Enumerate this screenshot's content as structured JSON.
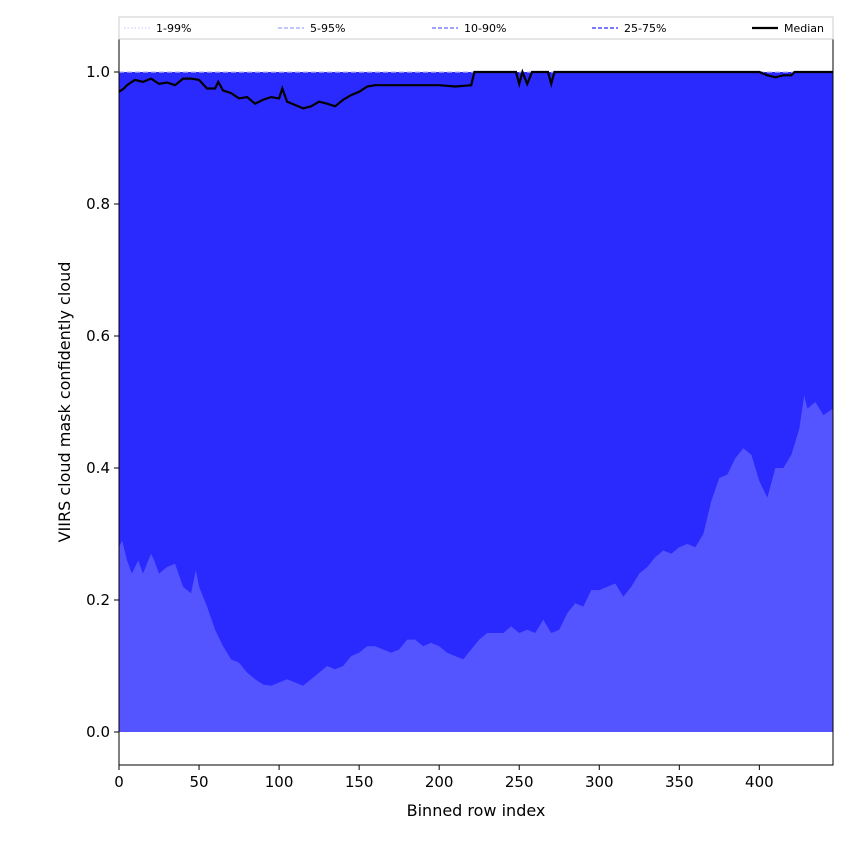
{
  "chart_data": {
    "type": "area",
    "xlabel": "Binned row index",
    "ylabel": "VIIRS cloud mask confidently cloud",
    "xlim": [
      0,
      446
    ],
    "ylim": [
      -0.05,
      1.05
    ],
    "xticks": [
      0,
      50,
      100,
      150,
      200,
      250,
      300,
      350,
      400
    ],
    "yticks": [
      0.0,
      0.2,
      0.4,
      0.6,
      0.8,
      1.0
    ],
    "grid": false,
    "legend_position": "top, spanning full width",
    "colors": {
      "band_5_95": "#2a2aff",
      "band_1_99": "#5555ff",
      "median": "#000000",
      "background": "#ffffff"
    },
    "legend": [
      {
        "label": "1-99%",
        "style": "dotted",
        "color": "#d8d8ff"
      },
      {
        "label": "5-95%",
        "style": "dashed",
        "color": "#b0b0ff"
      },
      {
        "label": "10-90%",
        "style": "dashed",
        "color": "#8080ff"
      },
      {
        "label": "25-75%",
        "style": "dashed",
        "color": "#4d4dff"
      },
      {
        "label": "Median",
        "style": "solid",
        "color": "#000000"
      }
    ],
    "series": [
      {
        "name": "Median",
        "x": [
          0,
          3,
          5,
          8,
          10,
          15,
          20,
          25,
          30,
          35,
          40,
          45,
          50,
          55,
          60,
          62,
          65,
          70,
          75,
          80,
          85,
          90,
          95,
          100,
          102,
          105,
          110,
          115,
          120,
          125,
          130,
          135,
          140,
          145,
          150,
          155,
          160,
          170,
          180,
          190,
          200,
          210,
          220,
          222,
          230,
          240,
          248,
          250,
          252,
          255,
          258,
          262,
          268,
          270,
          272,
          280,
          300,
          350,
          400,
          405,
          410,
          415,
          420,
          422,
          425,
          430,
          446
        ],
        "y": [
          0.97,
          0.975,
          0.98,
          0.985,
          0.988,
          0.985,
          0.99,
          0.982,
          0.984,
          0.98,
          0.99,
          0.99,
          0.988,
          0.975,
          0.975,
          0.985,
          0.972,
          0.968,
          0.96,
          0.962,
          0.952,
          0.958,
          0.962,
          0.96,
          0.975,
          0.955,
          0.95,
          0.945,
          0.948,
          0.955,
          0.952,
          0.948,
          0.958,
          0.965,
          0.97,
          0.978,
          0.98,
          0.98,
          0.98,
          0.98,
          0.98,
          0.978,
          0.98,
          1.0,
          1.0,
          1.0,
          1.0,
          0.982,
          1.0,
          0.982,
          1.0,
          1.0,
          1.0,
          0.982,
          1.0,
          1.0,
          1.0,
          1.0,
          1.0,
          0.995,
          0.992,
          0.995,
          0.995,
          1.0,
          1.0,
          1.0,
          1.0
        ]
      },
      {
        "name": "1-99%",
        "x": [
          0,
          2,
          5,
          8,
          10,
          12,
          15,
          20,
          22,
          25,
          30,
          35,
          40,
          45,
          48,
          50,
          55,
          60,
          65,
          70,
          75,
          80,
          85,
          90,
          95,
          100,
          105,
          110,
          115,
          120,
          125,
          130,
          135,
          140,
          145,
          150,
          155,
          160,
          165,
          170,
          175,
          180,
          185,
          190,
          195,
          200,
          205,
          210,
          215,
          220,
          225,
          230,
          240,
          245,
          250,
          255,
          260,
          265,
          270,
          275,
          280,
          285,
          290,
          295,
          300,
          305,
          310,
          315,
          320,
          325,
          330,
          335,
          340,
          345,
          350,
          355,
          360,
          365,
          370,
          375,
          380,
          385,
          390,
          395,
          400,
          405,
          410,
          415,
          420,
          425,
          428,
          430,
          435,
          440,
          446
        ],
        "lower": [
          0.0,
          0.0,
          0.0,
          0.0,
          0.0,
          0.0,
          0.0,
          0.0,
          0.0,
          0.0,
          0.0,
          0.0,
          0.0,
          0.0,
          0.0,
          0.0,
          0.0,
          0.0,
          0.0,
          0.0,
          0.0,
          0.0,
          0.0,
          0.0,
          0.0,
          0.0,
          0.0,
          0.0,
          0.0,
          0.0,
          0.0,
          0.0,
          0.0,
          0.0,
          0.0,
          0.0,
          0.0,
          0.0,
          0.0,
          0.0,
          0.0,
          0.0,
          0.0,
          0.0,
          0.0,
          0.0,
          0.0,
          0.0,
          0.0,
          0.0,
          0.0,
          0.0,
          0.0,
          0.0,
          0.0,
          0.0,
          0.0,
          0.0,
          0.0,
          0.0,
          0.0,
          0.0,
          0.0,
          0.0,
          0.0,
          0.0,
          0.0,
          0.0,
          0.0,
          0.0,
          0.0,
          0.0,
          0.0,
          0.0,
          0.0,
          0.0,
          0.0,
          0.0,
          0.0,
          0.0,
          0.0,
          0.0,
          0.0,
          0.0,
          0.0,
          0.0,
          0.0,
          0.0,
          0.0,
          0.0,
          0.0,
          0.0,
          0.0,
          0.0,
          0.0
        ],
        "upper": [
          0.28,
          0.29,
          0.26,
          0.24,
          0.25,
          0.26,
          0.24,
          0.27,
          0.26,
          0.24,
          0.25,
          0.255,
          0.22,
          0.21,
          0.245,
          0.22,
          0.19,
          0.155,
          0.13,
          0.11,
          0.105,
          0.09,
          0.08,
          0.072,
          0.07,
          0.075,
          0.08,
          0.075,
          0.07,
          0.08,
          0.09,
          0.1,
          0.095,
          0.1,
          0.115,
          0.12,
          0.13,
          0.13,
          0.125,
          0.12,
          0.125,
          0.14,
          0.14,
          0.13,
          0.135,
          0.13,
          0.12,
          0.115,
          0.11,
          0.125,
          0.14,
          0.15,
          0.15,
          0.16,
          0.15,
          0.155,
          0.15,
          0.17,
          0.15,
          0.155,
          0.18,
          0.195,
          0.19,
          0.215,
          0.215,
          0.22,
          0.225,
          0.205,
          0.22,
          0.24,
          0.25,
          0.265,
          0.275,
          0.27,
          0.28,
          0.285,
          0.28,
          0.3,
          0.35,
          0.385,
          0.39,
          0.415,
          0.43,
          0.42,
          0.38,
          0.355,
          0.4,
          0.4,
          0.42,
          0.46,
          0.51,
          0.49,
          0.5,
          0.48,
          0.49
        ]
      },
      {
        "name": "5-95%",
        "x": [
          0,
          446
        ],
        "lower": [
          0.0,
          0.0
        ],
        "upper": [
          1.0,
          1.0
        ]
      }
    ]
  }
}
